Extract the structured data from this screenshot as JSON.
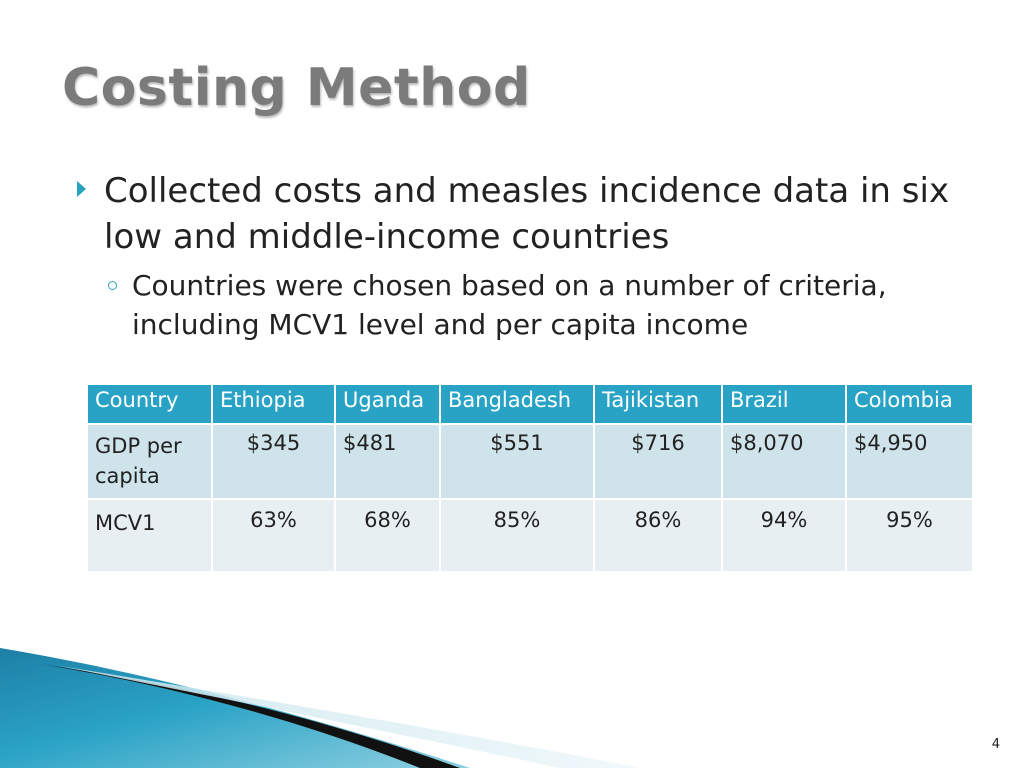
{
  "slide": {
    "title": "Costing Method",
    "bullet_main": "Collected costs and measles incidence data in six low and middle-income countries",
    "bullet_sub": "Countries were chosen based on a number of criteria, including MCV1 level and per capita income",
    "page_number": "4"
  },
  "table": {
    "headers": [
      "Country",
      "Ethiopia",
      "Uganda",
      "Bangladesh",
      "Tajikistan",
      "Brazil",
      "Colombia"
    ],
    "rows": [
      [
        "GDP per capita",
        "$345",
        "$481",
        "$551",
        "$716",
        "$8,070",
        "$4,950"
      ],
      [
        "MCV1",
        "63%",
        "68%",
        "85%",
        "86%",
        "94%",
        "95%"
      ]
    ]
  },
  "colors": {
    "accent": "#29a3c5",
    "title": "#7b7b7b",
    "row_1_bg": "#cfe3eb",
    "row_2_bg": "#e8eff3"
  },
  "icons": {
    "bullet_level_1": "triangle-arrow-icon",
    "bullet_level_2": "circle-bullet-icon"
  }
}
